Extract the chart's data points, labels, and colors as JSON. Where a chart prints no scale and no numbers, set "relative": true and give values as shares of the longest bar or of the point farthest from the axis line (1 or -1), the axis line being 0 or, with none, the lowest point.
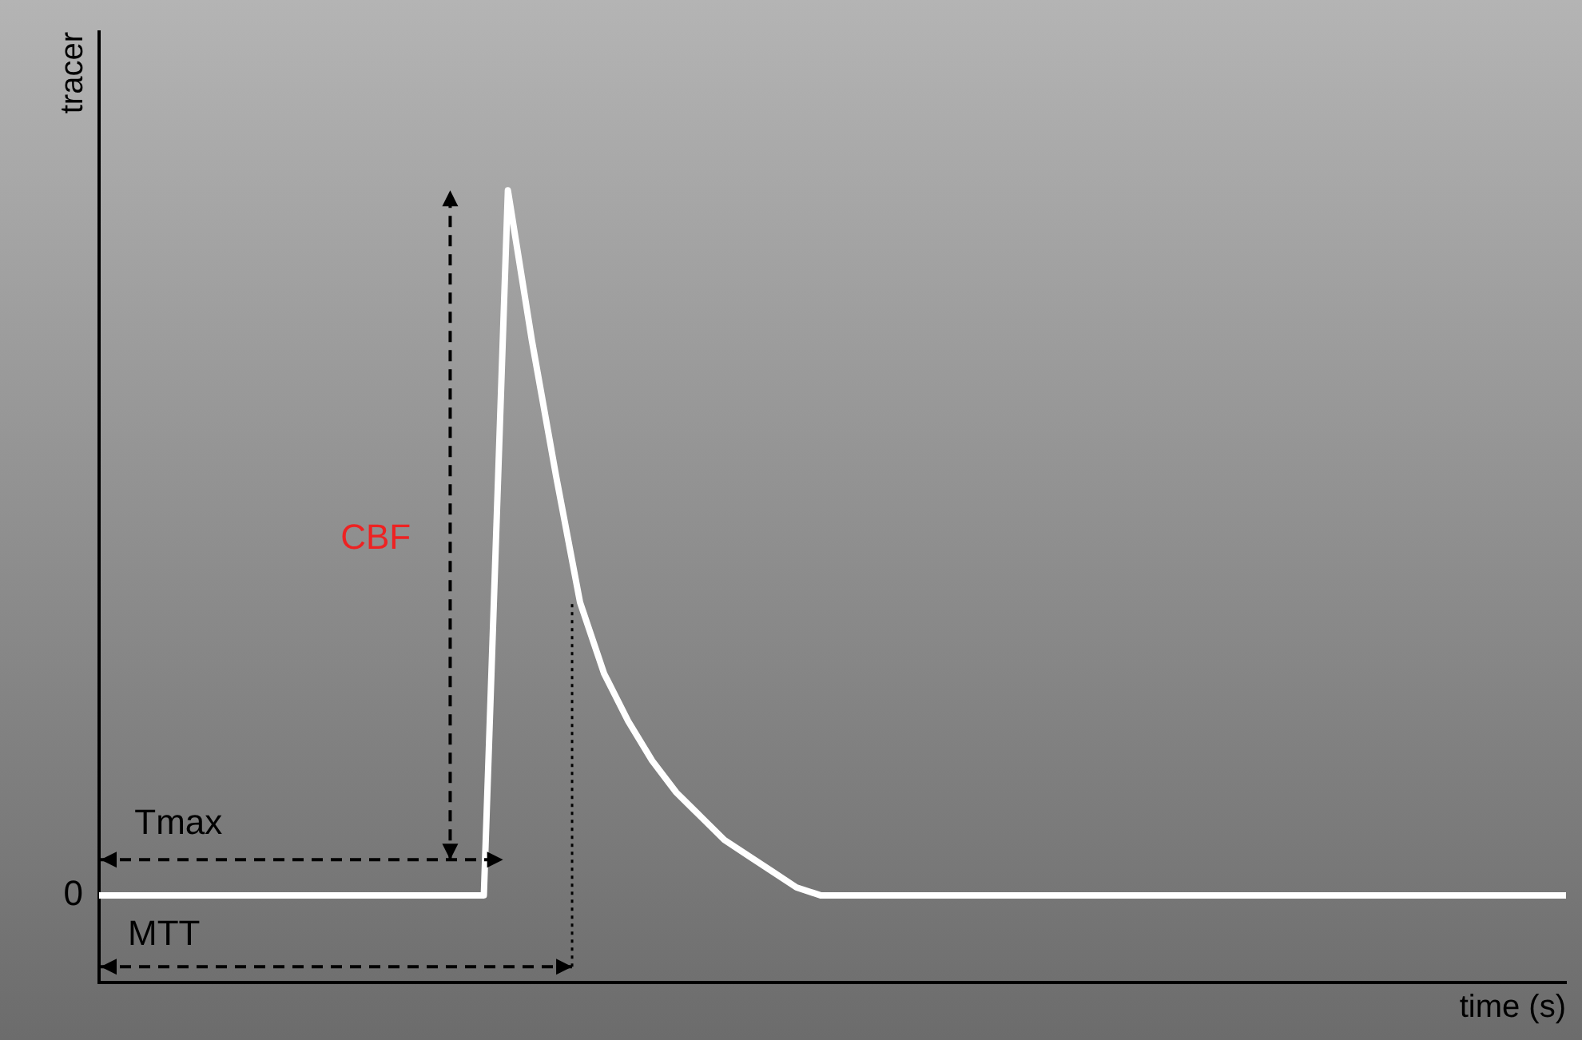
{
  "chart_data": {
    "type": "line",
    "relative": true,
    "xlabel": "time (s)",
    "ylabel": "tracer",
    "marker": "none",
    "grid": false,
    "legend": false,
    "categories": [
      null,
      null,
      null,
      null,
      null,
      null,
      null,
      null,
      null,
      null,
      null,
      null,
      null,
      null,
      null,
      null,
      null,
      null,
      null,
      null,
      null,
      null,
      null,
      null,
      null,
      null,
      null,
      null,
      null,
      null,
      null,
      null,
      null,
      null,
      null,
      null,
      null,
      null,
      null,
      null,
      null,
      null,
      null,
      null,
      null,
      null,
      null,
      null,
      null,
      null,
      null,
      null,
      null,
      null,
      null,
      null,
      null,
      null,
      null,
      null,
      null,
      null
    ],
    "series": [
      {
        "color": "#ffffff",
        "values": [
          0.11,
          0.11,
          0.11,
          0.11,
          0.11,
          0.11,
          0.11,
          0.11,
          0.11,
          0.11,
          0.11,
          0.11,
          0.11,
          0.11,
          0.11,
          0.11,
          0.11,
          1,
          0.81,
          0.64,
          0.48,
          0.39,
          0.33,
          0.28,
          0.24,
          0.21,
          0.18,
          0.16,
          0.14,
          0.12,
          0.11,
          0.11,
          0.11,
          0.11,
          0.11,
          0.11,
          0.11,
          0.11,
          0.11,
          0.11,
          0.11,
          0.11,
          0.11,
          0.11,
          0.11,
          0.11,
          0.11,
          0.11,
          0.11,
          0.11,
          0.11,
          0.11,
          0.11,
          0.11,
          0.11,
          0.11,
          0.11,
          0.11,
          0.11,
          0.11,
          0.11,
          0.11
        ]
      }
    ],
    "annotations": [
      "0",
      "Tmax",
      "MTT",
      "CBF"
    ]
  }
}
